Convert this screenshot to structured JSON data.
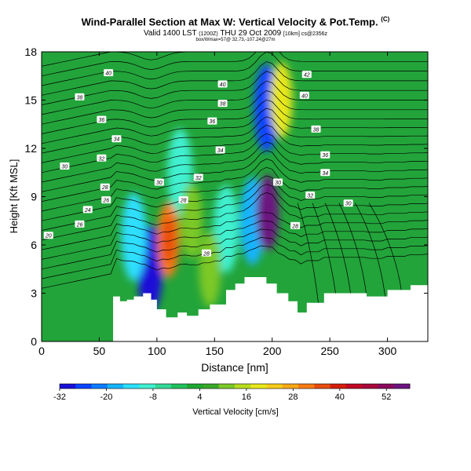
{
  "header": {
    "title": "Wind-Parallel Section at Max W: Vertical Velocity & Pot.Temp.",
    "title_mark": "(C)",
    "subtitle_main": "Valid 1400 LST",
    "subtitle_utc": "(1200Z)",
    "subtitle_date": "THU 29 Oct 2009",
    "subtitle_src": "[10km] cs@2356z",
    "bbox_text": "box/Wmax=57@ 32.73,-107.24@27m"
  },
  "chart_data": {
    "type": "heatmap",
    "xlabel": "Distance [nm]",
    "ylabel": "Height [Kft MSL]",
    "xlim": [
      0,
      335
    ],
    "ylim": [
      0,
      18
    ],
    "x_ticks": [
      "0",
      "50",
      "100",
      "150",
      "200",
      "250",
      "300"
    ],
    "y_ticks": [
      "0",
      "3",
      "6",
      "9",
      "12",
      "15",
      "18"
    ],
    "colorbar": {
      "label": "Vertical Velocity [cm/s]",
      "range": [
        -32,
        58
      ],
      "tick_labels": [
        "-32",
        "-20",
        "-8",
        "4",
        "16",
        "28",
        "40",
        "52"
      ],
      "colors": [
        "#1a10d8",
        "#0a44ff",
        "#0c7cff",
        "#16b4ff",
        "#2ddfff",
        "#40f0d0",
        "#35d898",
        "#22c05e",
        "#1fa832",
        "#3aa82a",
        "#7cc828",
        "#b8dc20",
        "#e8e81a",
        "#f8cc1a",
        "#f8a818",
        "#f87c14",
        "#e84c10",
        "#d41e0c",
        "#c00a24",
        "#a8083c",
        "#8a0a5c",
        "#6c1480"
      ]
    },
    "updrafts": [
      {
        "x": 110,
        "z": 6.3,
        "w": 32
      },
      {
        "x": 146,
        "z": 4.5,
        "w": 10
      },
      {
        "x": 196,
        "z": 8.0,
        "w": 54
      },
      {
        "x": 208,
        "z": 15.0,
        "w": 20
      },
      {
        "x": 130,
        "z": 7.5,
        "w": 10
      }
    ],
    "downdrafts": [
      {
        "x": 94,
        "z": 4.5,
        "w": -32
      },
      {
        "x": 80,
        "z": 6.5,
        "w": -14
      },
      {
        "x": 183,
        "z": 7.5,
        "w": -18
      },
      {
        "x": 195,
        "z": 14.5,
        "w": -26
      },
      {
        "x": 160,
        "z": 7.0,
        "w": -10
      },
      {
        "x": 120,
        "z": 10.5,
        "w": -8
      }
    ],
    "terrain_top_kft": [
      [
        0,
        0
      ],
      [
        58,
        0
      ],
      [
        62,
        2.8
      ],
      [
        68,
        2.5
      ],
      [
        74,
        2.6
      ],
      [
        80,
        2.8
      ],
      [
        88,
        3.0
      ],
      [
        95,
        2.6
      ],
      [
        100,
        2.0
      ],
      [
        108,
        1.5
      ],
      [
        118,
        1.8
      ],
      [
        126,
        1.6
      ],
      [
        136,
        2.0
      ],
      [
        146,
        2.3
      ],
      [
        160,
        3.2
      ],
      [
        168,
        3.6
      ],
      [
        176,
        4.0
      ],
      [
        184,
        4.0
      ],
      [
        195,
        3.6
      ],
      [
        204,
        3.0
      ],
      [
        214,
        2.5
      ],
      [
        222,
        1.8
      ],
      [
        230,
        2.4
      ],
      [
        245,
        3.0
      ],
      [
        262,
        3.0
      ],
      [
        282,
        2.8
      ],
      [
        300,
        3.2
      ],
      [
        320,
        3.5
      ],
      [
        335,
        3.6
      ]
    ],
    "isentrope_labels": [
      {
        "text": "40",
        "x": 58,
        "z": 16.7
      },
      {
        "text": "40",
        "x": 157,
        "z": 16.0
      },
      {
        "text": "42",
        "x": 230,
        "z": 16.6
      },
      {
        "text": "38",
        "x": 33,
        "z": 15.2
      },
      {
        "text": "38",
        "x": 157,
        "z": 14.8
      },
      {
        "text": "40",
        "x": 228,
        "z": 15.3
      },
      {
        "text": "36",
        "x": 52,
        "z": 13.8
      },
      {
        "text": "36",
        "x": 148,
        "z": 13.7
      },
      {
        "text": "38",
        "x": 238,
        "z": 13.2
      },
      {
        "text": "34",
        "x": 65,
        "z": 12.6
      },
      {
        "text": "34",
        "x": 155,
        "z": 11.9
      },
      {
        "text": "36",
        "x": 246,
        "z": 11.6
      },
      {
        "text": "32",
        "x": 52,
        "z": 11.4
      },
      {
        "text": "32",
        "x": 136,
        "z": 10.2
      },
      {
        "text": "34",
        "x": 246,
        "z": 10.5
      },
      {
        "text": "30",
        "x": 20,
        "z": 10.9
      },
      {
        "text": "30",
        "x": 102,
        "z": 9.9
      },
      {
        "text": "30",
        "x": 205,
        "z": 9.9
      },
      {
        "text": "28",
        "x": 55,
        "z": 9.6
      },
      {
        "text": "28",
        "x": 123,
        "z": 8.8
      },
      {
        "text": "32",
        "x": 233,
        "z": 9.1
      },
      {
        "text": "26",
        "x": 56,
        "z": 8.8
      },
      {
        "text": "30",
        "x": 266,
        "z": 8.6
      },
      {
        "text": "24",
        "x": 40,
        "z": 8.2
      },
      {
        "text": "26",
        "x": 33,
        "z": 7.3
      },
      {
        "text": "28",
        "x": 220,
        "z": 7.2
      },
      {
        "text": "20",
        "x": 6,
        "z": 6.6
      },
      {
        "text": "28",
        "x": 143,
        "z": 5.5
      }
    ]
  }
}
